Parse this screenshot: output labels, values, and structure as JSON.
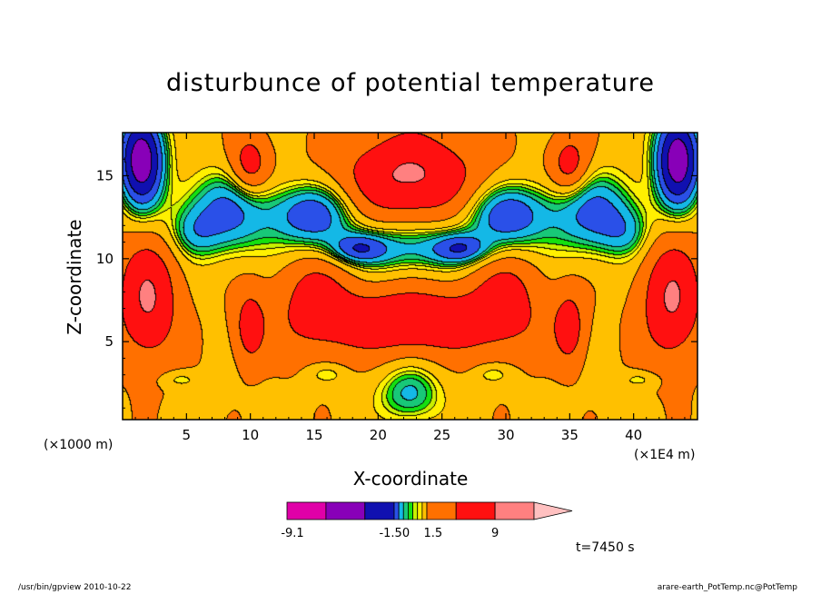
{
  "chart_data": {
    "type": "heatmap",
    "title": "disturbunce of potential temperature",
    "xlabel": "X-coordinate",
    "ylabel": "Z-coordinate",
    "x_unit_label": "(×1000 m)",
    "x_scale_label": "(×1E4 m)",
    "x_ticks": [
      5,
      10,
      15,
      20,
      25,
      30,
      35,
      40
    ],
    "y_ticks": [
      5,
      10,
      15
    ],
    "xlim": [
      0,
      45
    ],
    "ylim": [
      0.3,
      17.6
    ],
    "colorbar": {
      "colors": [
        "#e000a8",
        "#8800b8",
        "#1010b0",
        "#2a50e8",
        "#14b8e6",
        "#18c878",
        "#14e010",
        "#c8f000",
        "#fff000",
        "#ffc000",
        "#ff7000",
        "#ff1010",
        "#ff8080",
        "#ffc0c0"
      ],
      "tick_labels": [
        "-9.1",
        "-1.50",
        "1.5",
        "9"
      ],
      "extend": "max"
    },
    "blobs": [
      {
        "x": 1.5,
        "y": 16.0,
        "rx": 1.7,
        "ry": 2.8,
        "v": -9
      },
      {
        "x": 43.5,
        "y": 16.0,
        "rx": 1.7,
        "ry": 2.8,
        "v": -9
      },
      {
        "x": 8,
        "y": 12.8,
        "rx": 3.6,
        "ry": 2.4,
        "v": -4
      },
      {
        "x": 37,
        "y": 12.8,
        "rx": 3.6,
        "ry": 2.4,
        "v": -4
      },
      {
        "x": 14.8,
        "y": 12.6,
        "rx": 3.2,
        "ry": 1.8,
        "v": -5
      },
      {
        "x": 30.2,
        "y": 12.6,
        "rx": 3.2,
        "ry": 1.8,
        "v": -5
      },
      {
        "x": 22.5,
        "y": 10.6,
        "rx": 8.5,
        "ry": 1.5,
        "v": -3.2
      },
      {
        "x": 18.5,
        "y": 10.6,
        "rx": 2.0,
        "ry": 0.8,
        "v": -3
      },
      {
        "x": 26.5,
        "y": 10.6,
        "rx": 2.0,
        "ry": 0.8,
        "v": -3
      },
      {
        "x": 22.5,
        "y": 15.0,
        "rx": 5.0,
        "ry": 2.6,
        "v": 5.2
      },
      {
        "x": 22.5,
        "y": 6.2,
        "rx": 7.0,
        "ry": 1.9,
        "v": 4.8
      },
      {
        "x": 2.0,
        "y": 7.5,
        "rx": 2.3,
        "ry": 3.6,
        "v": 5.0
      },
      {
        "x": 43.0,
        "y": 7.5,
        "rx": 2.3,
        "ry": 3.6,
        "v": 5.0
      },
      {
        "x": 10,
        "y": 5.8,
        "rx": 1.2,
        "ry": 2.2,
        "v": 3.6
      },
      {
        "x": 35,
        "y": 5.8,
        "rx": 1.2,
        "ry": 2.2,
        "v": 3.6
      },
      {
        "x": 10,
        "y": 15.6,
        "rx": 1.5,
        "ry": 1.8,
        "v": 3.8
      },
      {
        "x": 35,
        "y": 15.6,
        "rx": 1.5,
        "ry": 1.8,
        "v": 3.8
      },
      {
        "x": 22.5,
        "y": 1.8,
        "rx": 2.5,
        "ry": 1.8,
        "v": -3.0
      },
      {
        "x": 15,
        "y": 8.0,
        "rx": 3.0,
        "ry": 3.5,
        "v": 2.8
      },
      {
        "x": 30,
        "y": 8.0,
        "rx": 3.0,
        "ry": 3.5,
        "v": 2.8
      },
      {
        "x": 4.5,
        "y": 2.7,
        "rx": 1.5,
        "ry": 0.5,
        "v": -1.5
      },
      {
        "x": 40.5,
        "y": 2.7,
        "rx": 1.5,
        "ry": 0.5,
        "v": -1.5
      },
      {
        "x": 16,
        "y": 3.0,
        "rx": 1.5,
        "ry": 0.6,
        "v": -1.6
      },
      {
        "x": 29,
        "y": 3.0,
        "rx": 1.5,
        "ry": 0.6,
        "v": -1.6
      },
      {
        "x": 5.5,
        "y": 11.5,
        "rx": 2.0,
        "ry": 1.5,
        "v": -1.8
      },
      {
        "x": 39.5,
        "y": 11.5,
        "rx": 2.0,
        "ry": 1.5,
        "v": -1.8
      }
    ],
    "background_value": 1.2
  },
  "time_label": "t=7450 s",
  "footer": {
    "left": "/usr/bin/gpview   2010-10-22",
    "right": "arare-earth_PotTemp.nc@PotTemp"
  }
}
